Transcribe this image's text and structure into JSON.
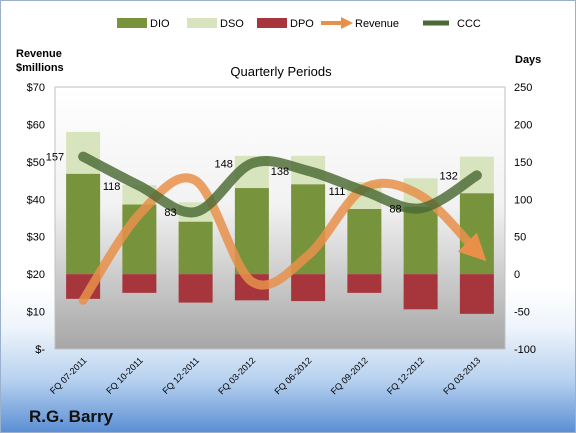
{
  "chart_data": {
    "type": "bar",
    "title": "Quarterly Periods",
    "company": "R.G. Barry",
    "left_axis_label": [
      "Revenue",
      "$millions"
    ],
    "right_axis_label": "Days",
    "left_ticks": [
      "$-",
      "$10",
      "$20",
      "$30",
      "$40",
      "$50",
      "$60",
      "$70"
    ],
    "left_ylim": [
      0,
      70
    ],
    "right_ticks": [
      "-100",
      "-50",
      "0",
      "50",
      "100",
      "150",
      "200",
      "250"
    ],
    "right_ylim": [
      -100,
      250
    ],
    "categories": [
      "FQ 07-2011",
      "FQ 10-2011",
      "FQ 12-2011",
      "FQ 03-2012",
      "FQ 06-2012",
      "FQ 09-2012",
      "FQ 12-2012",
      "FQ 03-2013"
    ],
    "series": [
      {
        "name": "DIO",
        "axis": "right",
        "values": [
          134,
          93,
          70,
          115,
          120,
          87,
          90,
          108
        ],
        "color": "#77933c"
      },
      {
        "name": "DSO",
        "axis": "right",
        "values": [
          56,
          26,
          26,
          43,
          38,
          36,
          38,
          49
        ],
        "color": "#d7e4bd"
      },
      {
        "name": "DPO",
        "axis": "right",
        "values": [
          -33,
          -25,
          -38,
          -35,
          -36,
          -25,
          -47,
          -53
        ],
        "color": "#a6353c"
      },
      {
        "name": "Revenue",
        "axis": "left",
        "values": [
          13,
          36,
          45,
          18,
          25,
          43,
          41,
          26
        ],
        "color": "#e8904a"
      },
      {
        "name": "CCC",
        "axis": "right",
        "values": [
          157,
          118,
          83,
          148,
          138,
          111,
          88,
          132
        ],
        "color": "#4a6a35"
      }
    ],
    "ccc_labels": [
      "157",
      "118",
      "83",
      "148",
      "138",
      "111",
      "88",
      "132"
    ],
    "legend_position": "top",
    "grid": false
  }
}
